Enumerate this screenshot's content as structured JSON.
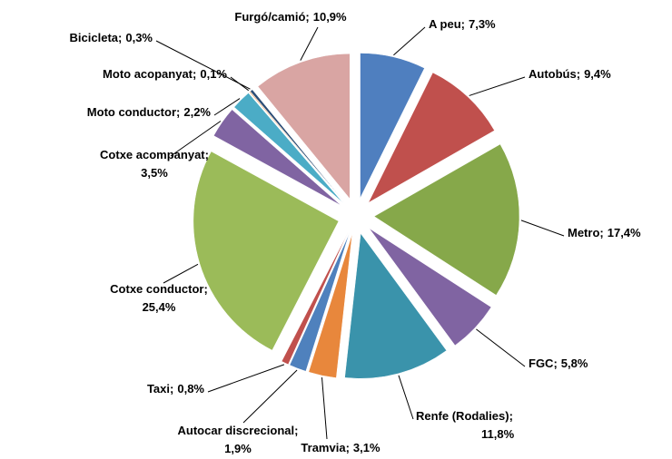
{
  "chart_data": {
    "type": "pie",
    "label_separator": ";",
    "categories": [
      "A peu",
      "Autobús",
      "Metro",
      "FGC",
      "Renfe (Rodalies)",
      "Tramvia",
      "Autocar discrecional",
      "Taxi",
      "Cotxe conductor",
      "Cotxe acompanyat",
      "Moto conductor",
      "Moto acopanyat",
      "Bicicleta",
      "Furgó/camió"
    ],
    "values": [
      7.3,
      9.4,
      17.4,
      5.8,
      11.8,
      3.1,
      1.9,
      0.8,
      25.4,
      3.5,
      2.2,
      0.1,
      0.3,
      10.9
    ],
    "value_labels": [
      "7,3%",
      "9,4%",
      "17,4%",
      "5,8%",
      "11,8%",
      "3,1%",
      "1,9%",
      "0,8%",
      "25,4%",
      "3,5%",
      "2,2%",
      "0,1%",
      "0,3%",
      "10,9%"
    ],
    "colors": [
      "#4f7fbf",
      "#c0504d",
      "#86a84a",
      "#8064a2",
      "#3a93ab",
      "#e8873c",
      "#4f81bd",
      "#c0504d",
      "#9bbb59",
      "#8064a2",
      "#4bacc6",
      "#f79646",
      "#2c4d75",
      "#d9a5a3"
    ]
  }
}
